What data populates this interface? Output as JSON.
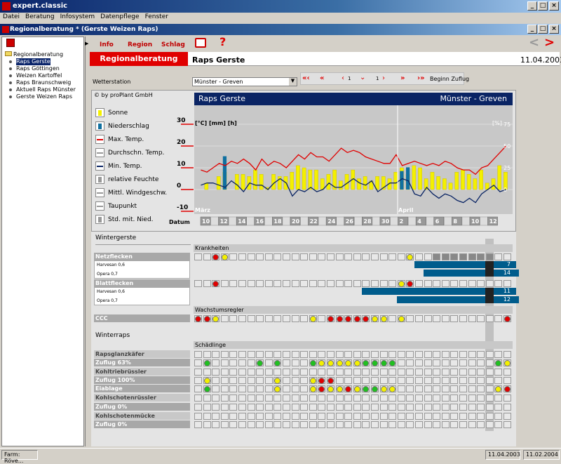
{
  "window": {
    "title": "expert.classic"
  },
  "menu": [
    "Datei",
    "Beratung",
    "Infosystem",
    "Datenpflege",
    "Fenster"
  ],
  "inner_window": {
    "title": "Regionalberatung * (Gerste Weizen Raps)"
  },
  "tree": {
    "root": "Regionalberatung",
    "items": [
      "Raps Gerste",
      "Raps Göttingen",
      "Weizen Kartoffel",
      "Raps Braunschweig",
      "Aktuell Raps Münster",
      "Gerste Weizen Raps"
    ]
  },
  "toolbar": {
    "info": "Info",
    "region": "Region",
    "schlag": "Schlag"
  },
  "header": {
    "banner": "Regionalberatung",
    "subtitle": "Raps Gerste",
    "date": "11.04.2003"
  },
  "station": {
    "label": "Wetterstation",
    "value": "Münster - Greven",
    "nav1": "1",
    "nav2": "1",
    "begin": "Beginn Zuflug"
  },
  "chart": {
    "copyright": "© by proPlant GmbH",
    "title": "Raps Gerste",
    "location": "Münster - Greven",
    "units_left": "[°C] [mm] [h]",
    "units_right": "[%]",
    "left_ticks": [
      "30",
      "20",
      "10",
      "0",
      "-10"
    ],
    "right_ticks": [
      "75",
      "50",
      "25",
      "0"
    ],
    "month1": "März",
    "month2": "April",
    "datum": "Datum",
    "days": [
      "10",
      "12",
      "14",
      "16",
      "18",
      "20",
      "22",
      "24",
      "26",
      "28",
      "30",
      "2",
      "4",
      "6",
      "8",
      "10",
      "12"
    ],
    "legend": [
      "Sonne",
      "Niederschlag",
      "Max. Temp.",
      "Durchschn. Temp.",
      "Min. Temp.",
      "relative Feuchte",
      "Mittl. Windgeschw.",
      "Taupunkt",
      "Std. mit. Nied."
    ]
  },
  "chart_data": {
    "type": "bar",
    "sun": [
      0,
      3,
      0,
      6,
      8,
      0,
      7,
      7,
      6,
      9,
      7,
      1,
      7,
      6,
      6,
      8,
      11,
      10,
      9,
      9,
      5,
      7,
      9,
      4,
      7,
      9,
      5,
      6,
      4,
      6,
      6,
      5,
      8,
      10,
      7,
      11,
      10,
      5,
      8,
      6,
      5,
      3,
      8,
      9,
      7,
      5,
      9,
      3,
      5,
      11,
      8
    ],
    "rain": [
      0,
      0,
      0,
      0,
      9,
      0,
      0,
      0,
      0,
      0,
      0,
      0,
      0,
      0,
      0,
      0,
      0,
      0,
      0,
      0,
      0,
      0,
      0,
      0,
      0,
      0,
      0,
      0,
      0,
      0,
      0,
      0,
      0,
      5,
      6,
      0,
      0,
      0,
      0,
      0,
      0,
      0,
      0,
      0,
      0,
      0,
      0,
      0,
      0,
      0,
      0
    ],
    "max_temp": [
      9,
      8,
      10,
      12,
      11,
      13,
      12,
      14,
      12,
      9,
      14,
      11,
      13,
      12,
      10,
      13,
      16,
      14,
      17,
      15,
      15,
      13,
      16,
      19,
      17,
      18,
      17,
      15,
      14,
      13,
      12,
      12,
      16,
      11,
      12,
      13,
      12,
      11,
      12,
      11,
      13,
      12,
      10,
      9,
      9,
      7,
      10,
      11,
      14,
      17,
      20
    ],
    "min_temp": [
      2,
      3,
      3,
      2,
      1,
      4,
      2,
      -1,
      3,
      2,
      2,
      0,
      3,
      5,
      3,
      -3,
      0,
      -1,
      1,
      -1,
      0,
      3,
      1,
      1,
      3,
      5,
      3,
      2,
      4,
      -1,
      1,
      3,
      3,
      5,
      4,
      -2,
      -3,
      1,
      -2,
      -4,
      -2,
      -3,
      -5,
      -6,
      -4,
      -6,
      -2,
      0,
      2,
      -1,
      0
    ]
  },
  "wintergerste": {
    "title": "Wintergerste",
    "krankheiten": "Krankheiten",
    "netzflecken": "Netzflecken",
    "harvesan1": "Harvesan 0,6",
    "opera1": "Opera 0,7",
    "v7": "7",
    "v14": "14",
    "blattflecken": "Blattflecken",
    "harvesan2": "Harvesan 0,6",
    "opera2": "Opera 0,7",
    "v11": "11",
    "v12": "12",
    "wachstum": "Wachstumsregler",
    "ccc": "CCC"
  },
  "winterraps": {
    "title": "Winterraps",
    "schaedlinge": "Schädlinge",
    "rapsglanz": "Rapsglanzkäfer",
    "zuflug63": "Zuflug 63%",
    "kohltrieb": "Kohltriebrüssler",
    "zuflug100": "Zuflug 100%",
    "eiablage": "Eiablage",
    "kohlschoten": "Kohlschotenrüssler",
    "zuflug0a": "Zuflug 0%",
    "kohlmuecke": "Kohlschotenmücke",
    "zuflug0b": "Zuflug 0%"
  },
  "status": {
    "farm": "Farm: Röve...",
    "d1": "11.04.2003",
    "d2": "11.02.2004"
  },
  "colors": {
    "red": "#e00000",
    "yellow": "#f4f000",
    "green": "#20c020",
    "blue": "#005c8c",
    "navy": "#0a2464"
  }
}
